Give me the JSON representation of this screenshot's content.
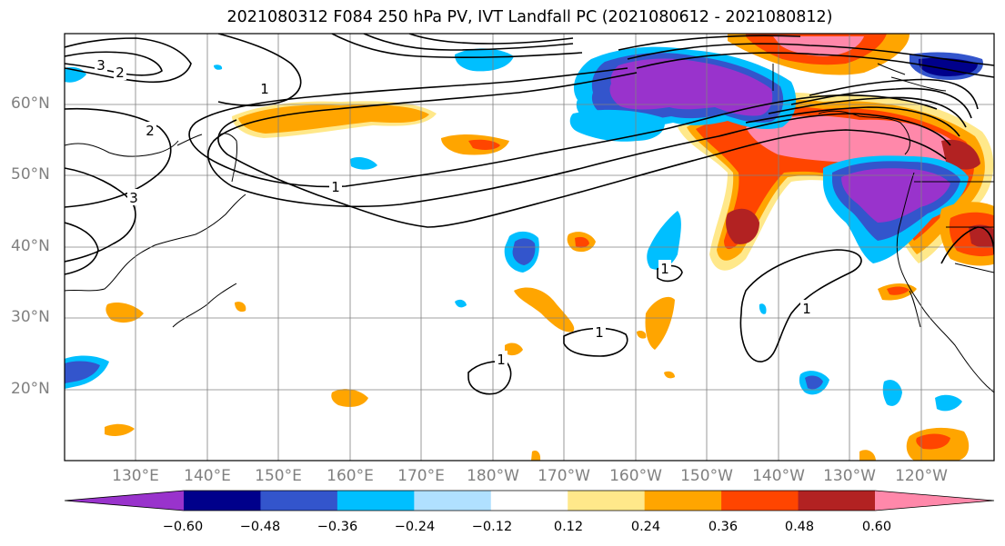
{
  "title": "2021080312 F084 250 hPa PV, IVT Landfall PC (2021080612 - 2021080812)",
  "map": {
    "lat_labels": [
      "60°N",
      "50°N",
      "40°N",
      "30°N",
      "20°N"
    ],
    "lon_labels": [
      "130°E",
      "140°E",
      "150°E",
      "160°E",
      "170°E",
      "180°W",
      "170°W",
      "160°W",
      "150°W",
      "140°W",
      "130°W",
      "120°W"
    ],
    "contour_labels": [
      "3",
      "2",
      "1",
      "2",
      "3",
      "1",
      "1",
      "1",
      "1",
      "1"
    ]
  },
  "colorbar": {
    "ticks": [
      "−0.60",
      "−0.48",
      "−0.36",
      "−0.24",
      "−0.12",
      "0.12",
      "0.24",
      "0.36",
      "0.48",
      "0.60"
    ],
    "colors": [
      "#9933cc",
      "#00008b",
      "#3355cc",
      "#00bfff",
      "#b0e0ff",
      "#ffffff",
      "#ffe88a",
      "#ffa500",
      "#ff4500",
      "#b22222",
      "#ff88aa"
    ]
  }
}
